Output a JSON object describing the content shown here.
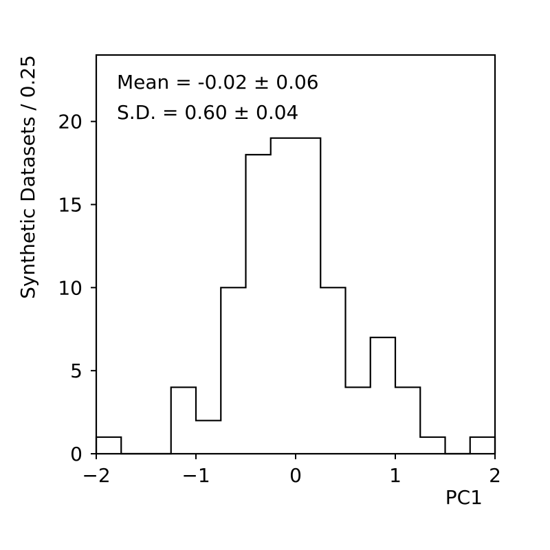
{
  "chart_data": {
    "type": "histogram",
    "xlabel": "PC1",
    "ylabel": "Synthetic Datasets / 0.25",
    "xlim": [
      -2,
      2
    ],
    "ylim": [
      0,
      24
    ],
    "bin_width": 0.25,
    "bin_edges": [
      -2,
      -1.75,
      -1.5,
      -1.25,
      -1,
      -0.75,
      -0.5,
      -0.25,
      0,
      0.25,
      0.5,
      0.75,
      1,
      1.25,
      1.5,
      1.75,
      2
    ],
    "counts": [
      1,
      0,
      0,
      4,
      2,
      10,
      18,
      19,
      19,
      10,
      4,
      7,
      4,
      1,
      0,
      1
    ],
    "x_ticks": [
      -2,
      -1,
      0,
      1,
      2
    ],
    "x_tick_labels": [
      "−2",
      "−1",
      "0",
      "1",
      "2"
    ],
    "y_ticks": [
      0,
      5,
      10,
      15,
      20
    ],
    "y_tick_labels": [
      "0",
      "5",
      "10",
      "15",
      "20"
    ],
    "annotations": [
      "Mean = -0.02 ± 0.06",
      "S.D. = 0.60 ± 0.04"
    ],
    "grid": false,
    "line_color": "#000000"
  }
}
